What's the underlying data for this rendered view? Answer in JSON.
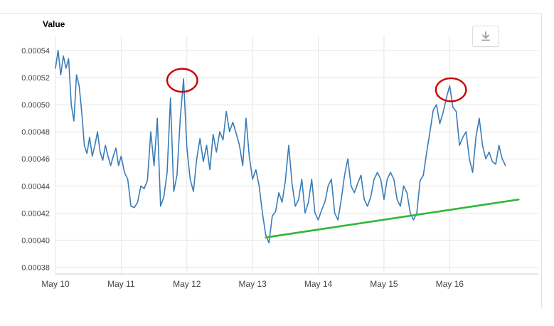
{
  "header": {
    "title": "Value"
  },
  "toolbar": {
    "download_button": {
      "icon": "download-icon"
    }
  },
  "colors": {
    "series_line": "#3a7cb8",
    "trend_line": "#2eb838",
    "annotation": "#cc0000",
    "grid": "#e6e6e6",
    "axis_line": "#cccccc",
    "axis_text": "#444444",
    "icon": "#9aa0a6"
  },
  "chart_data": {
    "type": "line",
    "title": "Value",
    "xlabel": "",
    "ylabel": "",
    "grid": true,
    "legend": "none",
    "xlim": [
      0,
      7.35
    ],
    "ylim": [
      0.000375,
      0.000551
    ],
    "y_ticks": [
      0.00038,
      0.0004,
      0.00042,
      0.00044,
      0.00046,
      0.00048,
      0.0005,
      0.00052,
      0.00054
    ],
    "x_ticks": [
      {
        "v": 0,
        "label": "May 10"
      },
      {
        "v": 1,
        "label": "May 11"
      },
      {
        "v": 2,
        "label": "May 12"
      },
      {
        "v": 3,
        "label": "May 13"
      },
      {
        "v": 4,
        "label": "May 14"
      },
      {
        "v": 5,
        "label": "May 15"
      },
      {
        "v": 6,
        "label": "May 16"
      }
    ],
    "series": [
      {
        "name": "value",
        "points": [
          [
            0.0,
            0.000527
          ],
          [
            0.04,
            0.00054
          ],
          [
            0.08,
            0.000522
          ],
          [
            0.12,
            0.000536
          ],
          [
            0.16,
            0.000527
          ],
          [
            0.2,
            0.000534
          ],
          [
            0.24,
            0.0005
          ],
          [
            0.28,
            0.000488
          ],
          [
            0.32,
            0.000522
          ],
          [
            0.36,
            0.000514
          ],
          [
            0.4,
            0.000494
          ],
          [
            0.44,
            0.00047
          ],
          [
            0.48,
            0.000464
          ],
          [
            0.52,
            0.000476
          ],
          [
            0.56,
            0.000462
          ],
          [
            0.6,
            0.00047
          ],
          [
            0.64,
            0.00048
          ],
          [
            0.68,
            0.000465
          ],
          [
            0.72,
            0.000459
          ],
          [
            0.76,
            0.00047
          ],
          [
            0.8,
            0.000462
          ],
          [
            0.84,
            0.000455
          ],
          [
            0.88,
            0.000462
          ],
          [
            0.92,
            0.000468
          ],
          [
            0.96,
            0.000455
          ],
          [
            1.0,
            0.000462
          ],
          [
            1.05,
            0.00045
          ],
          [
            1.1,
            0.000445
          ],
          [
            1.15,
            0.000425
          ],
          [
            1.2,
            0.000424
          ],
          [
            1.25,
            0.000428
          ],
          [
            1.3,
            0.00044
          ],
          [
            1.35,
            0.000438
          ],
          [
            1.4,
            0.000444
          ],
          [
            1.45,
            0.00048
          ],
          [
            1.5,
            0.000455
          ],
          [
            1.55,
            0.00049
          ],
          [
            1.6,
            0.000425
          ],
          [
            1.65,
            0.000432
          ],
          [
            1.7,
            0.00045
          ],
          [
            1.75,
            0.000505
          ],
          [
            1.8,
            0.000436
          ],
          [
            1.85,
            0.000448
          ],
          [
            1.9,
            0.00049
          ],
          [
            1.95,
            0.000519
          ],
          [
            2.0,
            0.000468
          ],
          [
            2.05,
            0.000445
          ],
          [
            2.1,
            0.000436
          ],
          [
            2.15,
            0.00046
          ],
          [
            2.2,
            0.000475
          ],
          [
            2.25,
            0.000458
          ],
          [
            2.3,
            0.00047
          ],
          [
            2.35,
            0.000452
          ],
          [
            2.4,
            0.000478
          ],
          [
            2.45,
            0.000465
          ],
          [
            2.5,
            0.00048
          ],
          [
            2.55,
            0.000474
          ],
          [
            2.6,
            0.000495
          ],
          [
            2.65,
            0.00048
          ],
          [
            2.7,
            0.000487
          ],
          [
            2.75,
            0.000479
          ],
          [
            2.8,
            0.00047
          ],
          [
            2.85,
            0.000455
          ],
          [
            2.9,
            0.00049
          ],
          [
            2.95,
            0.000462
          ],
          [
            3.0,
            0.000445
          ],
          [
            3.05,
            0.000452
          ],
          [
            3.1,
            0.00044
          ],
          [
            3.15,
            0.00042
          ],
          [
            3.2,
            0.000404
          ],
          [
            3.25,
            0.000398
          ],
          [
            3.3,
            0.000418
          ],
          [
            3.35,
            0.000421
          ],
          [
            3.4,
            0.000435
          ],
          [
            3.45,
            0.000428
          ],
          [
            3.5,
            0.000444
          ],
          [
            3.55,
            0.00047
          ],
          [
            3.6,
            0.000442
          ],
          [
            3.65,
            0.000425
          ],
          [
            3.7,
            0.00043
          ],
          [
            3.75,
            0.000445
          ],
          [
            3.8,
            0.00042
          ],
          [
            3.85,
            0.000428
          ],
          [
            3.9,
            0.000445
          ],
          [
            3.95,
            0.00042
          ],
          [
            4.0,
            0.000415
          ],
          [
            4.05,
            0.000422
          ],
          [
            4.1,
            0.000428
          ],
          [
            4.15,
            0.00044
          ],
          [
            4.2,
            0.000445
          ],
          [
            4.25,
            0.00042
          ],
          [
            4.3,
            0.000415
          ],
          [
            4.35,
            0.00043
          ],
          [
            4.4,
            0.000448
          ],
          [
            4.45,
            0.00046
          ],
          [
            4.5,
            0.00044
          ],
          [
            4.55,
            0.000435
          ],
          [
            4.6,
            0.000442
          ],
          [
            4.65,
            0.000448
          ],
          [
            4.7,
            0.00043
          ],
          [
            4.75,
            0.000425
          ],
          [
            4.8,
            0.000432
          ],
          [
            4.85,
            0.000445
          ],
          [
            4.9,
            0.00045
          ],
          [
            4.95,
            0.000445
          ],
          [
            5.0,
            0.00043
          ],
          [
            5.05,
            0.000445
          ],
          [
            5.1,
            0.00045
          ],
          [
            5.15,
            0.000445
          ],
          [
            5.2,
            0.00043
          ],
          [
            5.25,
            0.000425
          ],
          [
            5.3,
            0.00044
          ],
          [
            5.35,
            0.000435
          ],
          [
            5.4,
            0.00042
          ],
          [
            5.45,
            0.000415
          ],
          [
            5.5,
            0.00042
          ],
          [
            5.55,
            0.000444
          ],
          [
            5.6,
            0.000448
          ],
          [
            5.65,
            0.000465
          ],
          [
            5.7,
            0.00048
          ],
          [
            5.75,
            0.000496
          ],
          [
            5.8,
            0.0005
          ],
          [
            5.85,
            0.000486
          ],
          [
            5.9,
            0.000494
          ],
          [
            5.95,
            0.000505
          ],
          [
            6.0,
            0.000514
          ],
          [
            6.05,
            0.000498
          ],
          [
            6.1,
            0.000495
          ],
          [
            6.15,
            0.00047
          ],
          [
            6.2,
            0.000476
          ],
          [
            6.25,
            0.00048
          ],
          [
            6.3,
            0.00046
          ],
          [
            6.35,
            0.00045
          ],
          [
            6.4,
            0.000476
          ],
          [
            6.45,
            0.00049
          ],
          [
            6.5,
            0.00047
          ],
          [
            6.55,
            0.00046
          ],
          [
            6.6,
            0.000465
          ],
          [
            6.65,
            0.000458
          ],
          [
            6.7,
            0.000456
          ],
          [
            6.75,
            0.00047
          ],
          [
            6.8,
            0.00046
          ],
          [
            6.85,
            0.000455
          ]
        ]
      }
    ],
    "trend_line": {
      "x1": 3.2,
      "y1": 0.000402,
      "x2": 7.05,
      "y2": 0.00043
    },
    "annotations": [
      {
        "type": "ellipse",
        "cx": 1.93,
        "cy": 0.000518,
        "rx": 0.23,
        "ry": 8.5e-06
      },
      {
        "type": "ellipse",
        "cx": 6.02,
        "cy": 0.000511,
        "rx": 0.23,
        "ry": 8.5e-06
      }
    ]
  }
}
